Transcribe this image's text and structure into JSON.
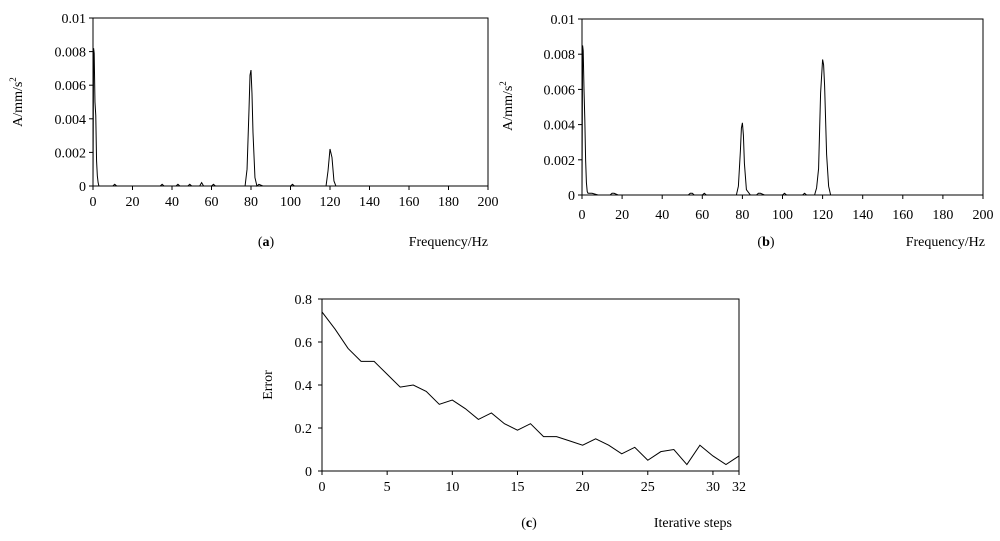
{
  "chart_data": [
    {
      "type": "line",
      "panel_label": "(a)",
      "panel_letter": "a",
      "xlabel": "Frequency/Hz",
      "ylabel": "A/mm/s",
      "ylabel_superscript": "2",
      "xlim": [
        0,
        200
      ],
      "ylim": [
        0,
        0.01
      ],
      "xticks": [
        0,
        20,
        40,
        60,
        80,
        100,
        120,
        140,
        160,
        180,
        200
      ],
      "yticks": [
        0,
        0.002,
        0.004,
        0.006,
        0.008,
        0.01
      ],
      "ytick_labels": [
        "0",
        "0.002",
        "0.004",
        "0.006",
        "0.008",
        "0.01"
      ],
      "grid": false,
      "series": [
        {
          "x": [
            0,
            0.3,
            0.6,
            1,
            1.4,
            1.8,
            2.2,
            2.6,
            3,
            5,
            8,
            10,
            11,
            12,
            14,
            20,
            30,
            34,
            35,
            36,
            38,
            42,
            43,
            44,
            46,
            48,
            49,
            50,
            52,
            54,
            55,
            56,
            58,
            60,
            61,
            62,
            64,
            70,
            77,
            78,
            79,
            79.5,
            80,
            80.5,
            81,
            82,
            83,
            84,
            86,
            88,
            100,
            101,
            102,
            110,
            118,
            119,
            120,
            121,
            122,
            123,
            124,
            130,
            160,
            200
          ],
          "y": [
            0,
            0.0082,
            0.0079,
            0.005,
            0.0042,
            0.0015,
            0.0006,
            0.0002,
            0,
            0,
            0,
            0,
            0.0001,
            0,
            0,
            0,
            0,
            0,
            0.0001,
            0,
            0,
            0,
            0.0001,
            0,
            0,
            0,
            0.0001,
            0,
            0,
            0,
            0.0002,
            0,
            0,
            0,
            0.0001,
            0,
            0,
            0,
            0,
            0.001,
            0.0046,
            0.0066,
            0.0069,
            0.0055,
            0.0032,
            0.0005,
            0,
            0.0001,
            0,
            0,
            0,
            0.0001,
            0,
            0,
            0,
            0.0009,
            0.0022,
            0.0017,
            0.0003,
            0,
            0,
            0,
            0,
            0
          ]
        }
      ]
    },
    {
      "type": "line",
      "panel_label": "(b)",
      "panel_letter": "b",
      "xlabel": "Frequency/Hz",
      "ylabel": "A/mm/s",
      "ylabel_superscript": "2",
      "xlim": [
        0,
        200
      ],
      "ylim": [
        0,
        0.01
      ],
      "xticks": [
        0,
        20,
        40,
        60,
        80,
        100,
        120,
        140,
        160,
        180,
        200
      ],
      "yticks": [
        0,
        0.002,
        0.004,
        0.006,
        0.008,
        0.01
      ],
      "ytick_labels": [
        "0",
        "0.002",
        "0.004",
        "0.006",
        "0.008",
        "0.01"
      ],
      "grid": false,
      "series": [
        {
          "x": [
            0,
            0.3,
            0.6,
            1,
            1.4,
            1.8,
            2.2,
            2.6,
            3,
            5,
            8,
            10,
            14,
            15,
            16,
            18,
            20,
            40,
            53,
            54,
            55,
            56,
            60,
            61,
            62,
            64,
            77,
            78,
            79,
            79.5,
            80,
            80.5,
            81,
            82,
            84,
            87,
            88,
            89,
            91,
            100,
            101,
            102,
            108,
            110,
            111,
            112,
            116,
            117,
            118,
            119,
            120,
            120.5,
            121,
            122,
            123,
            124,
            126,
            160,
            200
          ],
          "y": [
            0,
            0.0085,
            0.0082,
            0.006,
            0.0043,
            0.002,
            0.0007,
            0.0002,
            0.0001,
            0.0001,
            0,
            0,
            0,
            0.0001,
            0.0001,
            0,
            0,
            0,
            0,
            0.0001,
            0.0001,
            0,
            0,
            0.0001,
            0,
            0,
            0,
            0.0005,
            0.0025,
            0.0038,
            0.0041,
            0.0034,
            0.0018,
            0.0003,
            0,
            0,
            0.0001,
            0.0001,
            0,
            0,
            0.0001,
            0,
            0,
            0,
            0.0001,
            0,
            0,
            0.0004,
            0.0015,
            0.0058,
            0.0077,
            0.0074,
            0.0062,
            0.0023,
            0.0005,
            0,
            0,
            0,
            0
          ]
        }
      ]
    },
    {
      "type": "line",
      "panel_label": "(c)",
      "panel_letter": "c",
      "xlabel": "Iterative steps",
      "ylabel": "Error",
      "xlim": [
        0,
        32
      ],
      "ylim": [
        0,
        0.8
      ],
      "xticks": [
        0,
        5,
        10,
        15,
        20,
        25,
        30,
        32
      ],
      "yticks": [
        0,
        0.2,
        0.4,
        0.6,
        0.8
      ],
      "ytick_labels": [
        "0",
        "0.2",
        "0.4",
        "0.6",
        "0.8"
      ],
      "grid": false,
      "series": [
        {
          "x": [
            0,
            1,
            2,
            3,
            4,
            5,
            6,
            7,
            8,
            9,
            10,
            11,
            12,
            13,
            14,
            15,
            16,
            17,
            18,
            19,
            20,
            21,
            22,
            23,
            24,
            25,
            26,
            27,
            28,
            29,
            30,
            31,
            32
          ],
          "y": [
            0.74,
            0.66,
            0.57,
            0.51,
            0.51,
            0.45,
            0.39,
            0.4,
            0.37,
            0.31,
            0.33,
            0.29,
            0.24,
            0.27,
            0.22,
            0.19,
            0.22,
            0.16,
            0.16,
            0.14,
            0.12,
            0.15,
            0.12,
            0.08,
            0.11,
            0.05,
            0.09,
            0.1,
            0.03,
            0.12,
            0.07,
            0.03,
            0.07
          ]
        }
      ]
    }
  ]
}
